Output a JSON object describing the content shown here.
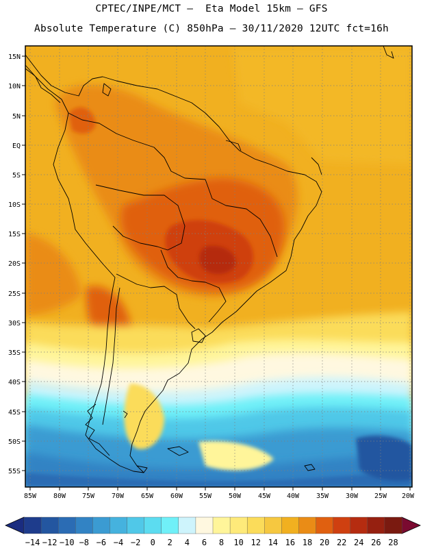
{
  "header": {
    "line1": "CPTEC/INPE/MCT –  Eta Model 15km – GFS",
    "line2": "Absolute Temperature (C) 850hPa – 30/11/2020 12UTC fct=16h"
  },
  "axes": {
    "lat_labels": [
      "15N",
      "10N",
      "5N",
      "EQ",
      "5S",
      "10S",
      "15S",
      "20S",
      "25S",
      "30S",
      "35S",
      "40S",
      "45S",
      "50S",
      "55S"
    ],
    "lon_labels": [
      "85W",
      "80W",
      "75W",
      "70W",
      "65W",
      "60W",
      "55W",
      "50W",
      "45W",
      "40W",
      "35W",
      "30W",
      "25W",
      "20W"
    ]
  },
  "colorbar": {
    "labels": [
      "-14",
      "-12",
      "-10",
      "-8",
      "-6",
      "-4",
      "-2",
      "0",
      "2",
      "4",
      "6",
      "8",
      "10",
      "12",
      "14",
      "16",
      "18",
      "20",
      "22",
      "24",
      "26",
      "28"
    ],
    "colors": [
      "#1e3c8c",
      "#2356a0",
      "#2b6cb4",
      "#3283c4",
      "#3b9bd2",
      "#45b2de",
      "#50c8e8",
      "#5cdcf0",
      "#70f0f8",
      "#cef4fc",
      "#fff8e0",
      "#fff59a",
      "#feea7a",
      "#fbdc5a",
      "#f6c840",
      "#f1b020",
      "#ea8c16",
      "#e06010",
      "#cf4010",
      "#b52c10",
      "#962010",
      "#7a1a10"
    ],
    "under_color": "#1a2c80",
    "over_color": "#7a0a30"
  }
}
